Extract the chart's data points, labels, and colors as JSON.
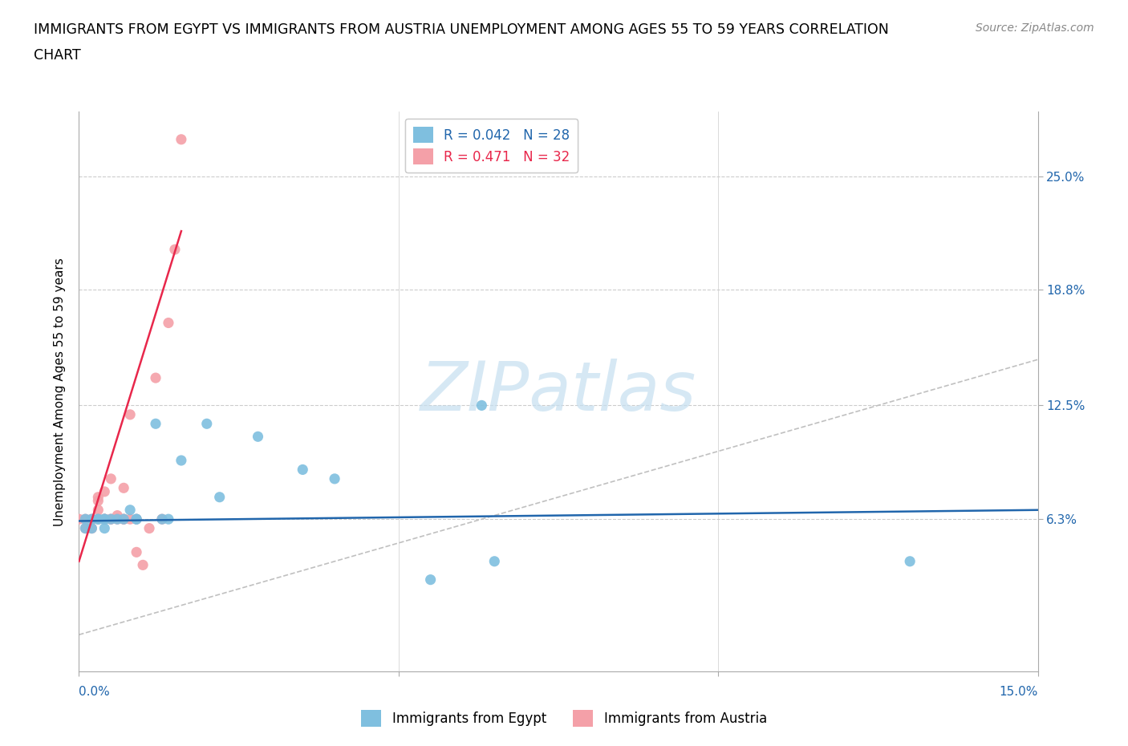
{
  "title_line1": "IMMIGRANTS FROM EGYPT VS IMMIGRANTS FROM AUSTRIA UNEMPLOYMENT AMONG AGES 55 TO 59 YEARS CORRELATION",
  "title_line2": "CHART",
  "source": "Source: ZipAtlas.com",
  "ylabel_label": "Unemployment Among Ages 55 to 59 years",
  "ytick_labels": [
    "25.0%",
    "18.8%",
    "12.5%",
    "6.3%"
  ],
  "ytick_values": [
    0.25,
    0.188,
    0.125,
    0.063
  ],
  "xlim": [
    0.0,
    0.15
  ],
  "ylim": [
    -0.02,
    0.285
  ],
  "color_egypt": "#7fbfdf",
  "color_austria": "#f4a0a8",
  "color_egypt_line": "#2166ac",
  "color_austria_line": "#e8274b",
  "color_trendline_grey": "#c0c0c0",
  "egypt_x": [
    0.001,
    0.001,
    0.002,
    0.002,
    0.003,
    0.003,
    0.004,
    0.004,
    0.004,
    0.005,
    0.006,
    0.007,
    0.008,
    0.009,
    0.009,
    0.012,
    0.013,
    0.014,
    0.016,
    0.02,
    0.022,
    0.028,
    0.035,
    0.04,
    0.055,
    0.063,
    0.065,
    0.13
  ],
  "egypt_y": [
    0.063,
    0.058,
    0.063,
    0.058,
    0.063,
    0.063,
    0.063,
    0.058,
    0.063,
    0.063,
    0.063,
    0.063,
    0.068,
    0.063,
    0.063,
    0.115,
    0.063,
    0.063,
    0.095,
    0.115,
    0.075,
    0.108,
    0.09,
    0.085,
    0.03,
    0.125,
    0.04,
    0.04
  ],
  "austria_x": [
    0.0,
    0.001,
    0.001,
    0.002,
    0.002,
    0.003,
    0.003,
    0.003,
    0.003,
    0.004,
    0.004,
    0.004,
    0.004,
    0.005,
    0.005,
    0.005,
    0.006,
    0.006,
    0.007,
    0.007,
    0.007,
    0.008,
    0.008,
    0.009,
    0.009,
    0.01,
    0.011,
    0.012,
    0.013,
    0.014,
    0.015,
    0.016
  ],
  "austria_y": [
    0.063,
    0.063,
    0.058,
    0.058,
    0.063,
    0.063,
    0.068,
    0.073,
    0.075,
    0.063,
    0.063,
    0.063,
    0.078,
    0.085,
    0.063,
    0.063,
    0.065,
    0.063,
    0.08,
    0.063,
    0.063,
    0.12,
    0.063,
    0.045,
    0.063,
    0.038,
    0.058,
    0.14,
    0.063,
    0.17,
    0.21,
    0.27
  ],
  "egypt_trend_x": [
    0.0,
    0.15
  ],
  "egypt_trend_y": [
    0.062,
    0.068
  ],
  "austria_trend_x": [
    0.0,
    0.016
  ],
  "austria_trend_y": [
    0.04,
    0.22
  ],
  "grey_line_x": [
    0.0,
    0.16
  ],
  "grey_line_y": [
    0.0,
    0.16
  ],
  "watermark_text": "ZIPatlas",
  "watermark_color": "#c5dff0",
  "title_fontsize": 12.5,
  "axis_label_fontsize": 11,
  "tick_fontsize": 11,
  "legend_fontsize": 12,
  "source_fontsize": 10
}
